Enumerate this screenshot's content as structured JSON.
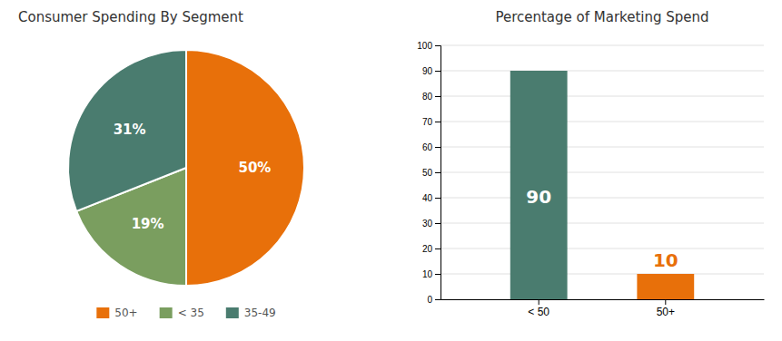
{
  "chart_data": [
    {
      "type": "pie",
      "title": "Consumer Spending By Segment",
      "categories": [
        "50+",
        "< 35",
        "35-49"
      ],
      "values": [
        50,
        19,
        31
      ],
      "value_labels": [
        "50%",
        "19%",
        "31%"
      ],
      "colors": [
        "#e8700a",
        "#7a9e5f",
        "#4a7c6f"
      ],
      "data_labels": true,
      "legend": "bottom"
    },
    {
      "type": "bar",
      "title": "Percentage of Marketing Spend",
      "categories": [
        "< 50",
        "50+"
      ],
      "values": [
        90,
        10
      ],
      "colors": [
        "#4a7c6f",
        "#e8700a"
      ],
      "ylim": [
        0,
        100
      ],
      "yticks": [
        0,
        10,
        20,
        30,
        40,
        50,
        60,
        70,
        80,
        90,
        100
      ],
      "grid": true,
      "data_labels": true
    }
  ]
}
